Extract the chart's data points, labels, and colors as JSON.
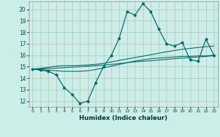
{
  "title": "",
  "xlabel": "Humidex (Indice chaleur)",
  "background_color": "#cceee8",
  "grid_color": "#b0b0b0",
  "line_color": "#006666",
  "xlim": [
    -0.5,
    23.5
  ],
  "ylim": [
    11.5,
    20.7
  ],
  "yticks": [
    12,
    13,
    14,
    15,
    16,
    17,
    18,
    19,
    20
  ],
  "xticks": [
    0,
    1,
    2,
    3,
    4,
    5,
    6,
    7,
    8,
    9,
    10,
    11,
    12,
    13,
    14,
    15,
    16,
    17,
    18,
    19,
    20,
    21,
    22,
    23
  ],
  "xtick_labels": [
    "0",
    "1",
    "2",
    "3",
    "4",
    "5",
    "6",
    "7",
    "8",
    "9",
    "10",
    "11",
    "12",
    "13",
    "14",
    "15",
    "16",
    "17",
    "18",
    "19",
    "20",
    "21",
    "22",
    "23"
  ],
  "series_main": [
    14.8,
    14.7,
    14.6,
    14.3,
    13.2,
    12.6,
    11.8,
    12.0,
    13.6,
    15.0,
    16.0,
    17.5,
    19.8,
    19.5,
    20.5,
    19.8,
    18.3,
    17.0,
    16.8,
    17.1,
    15.6,
    15.5,
    17.4,
    16.0
  ],
  "series_line2": [
    14.8,
    14.75,
    14.7,
    14.65,
    14.6,
    14.6,
    14.6,
    14.65,
    14.75,
    14.9,
    15.05,
    15.2,
    15.35,
    15.5,
    15.6,
    15.7,
    15.75,
    15.8,
    15.85,
    15.9,
    15.9,
    15.95,
    15.95,
    16.0
  ],
  "series_line3": [
    14.8,
    14.82,
    14.84,
    14.88,
    14.92,
    14.96,
    15.0,
    15.05,
    15.1,
    15.15,
    15.2,
    15.28,
    15.36,
    15.42,
    15.48,
    15.52,
    15.58,
    15.64,
    15.7,
    15.75,
    15.8,
    15.85,
    15.9,
    15.96
  ],
  "series_line4": [
    14.8,
    14.85,
    14.95,
    15.05,
    15.1,
    15.1,
    15.12,
    15.15,
    15.2,
    15.3,
    15.42,
    15.55,
    15.68,
    15.8,
    15.92,
    16.05,
    16.18,
    16.3,
    16.42,
    16.52,
    16.6,
    16.68,
    16.75,
    16.8
  ]
}
